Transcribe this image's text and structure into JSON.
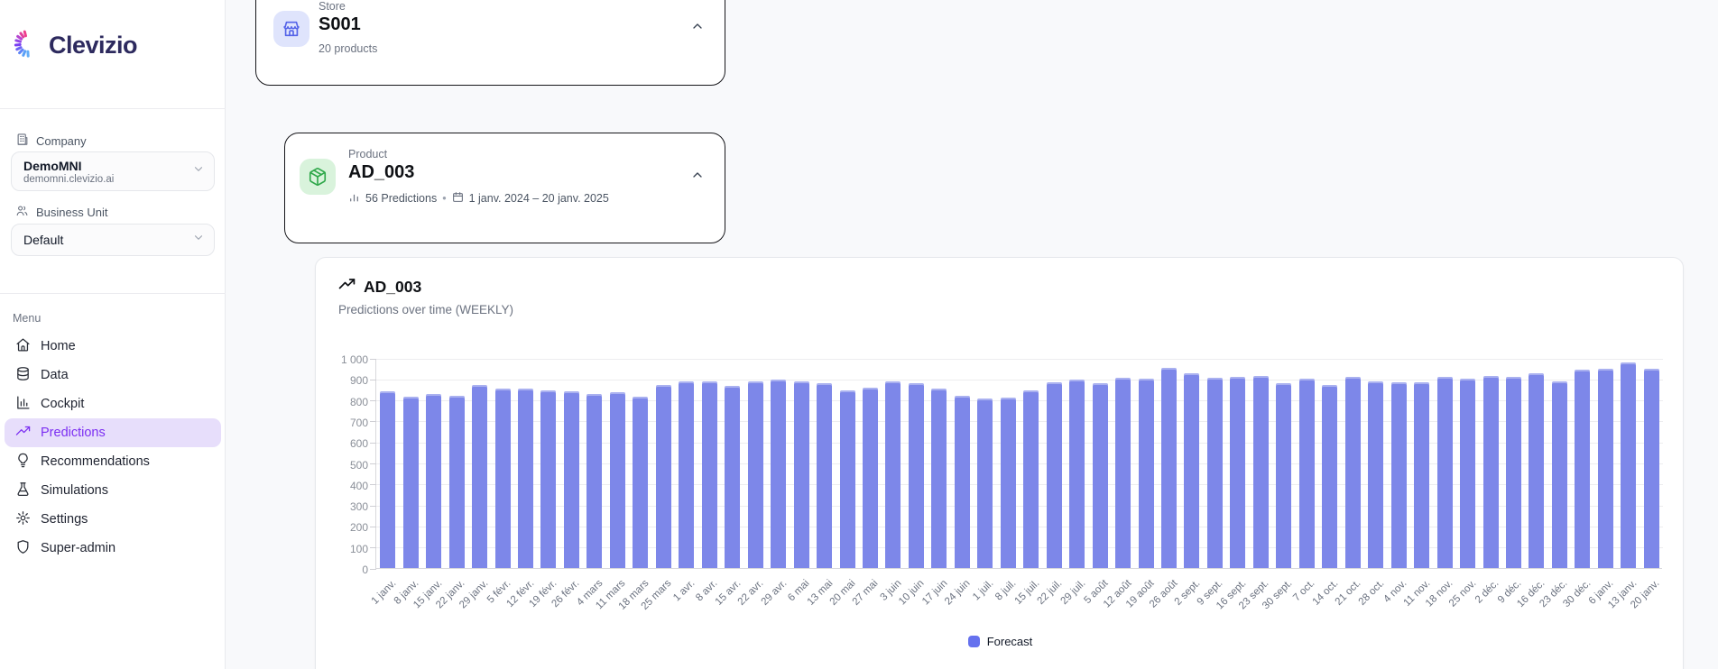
{
  "brand": {
    "name": "Clevizio"
  },
  "sidebar": {
    "company": {
      "label": "Company",
      "name": "DemoMNI",
      "domain": "demomni.clevizio.ai"
    },
    "business_unit": {
      "label": "Business Unit",
      "value": "Default"
    },
    "menu": {
      "label": "Menu",
      "items": [
        {
          "label": "Home",
          "icon": "home-icon",
          "active": false
        },
        {
          "label": "Data",
          "icon": "database-icon",
          "active": false
        },
        {
          "label": "Cockpit",
          "icon": "bar-chart-icon",
          "active": false
        },
        {
          "label": "Predictions",
          "icon": "trending-up-icon",
          "active": true
        },
        {
          "label": "Recommendations",
          "icon": "lightbulb-icon",
          "active": false
        },
        {
          "label": "Simulations",
          "icon": "flask-icon",
          "active": false
        },
        {
          "label": "Settings",
          "icon": "gear-icon",
          "active": false
        },
        {
          "label": "Super-admin",
          "icon": "shield-icon",
          "active": false
        }
      ]
    }
  },
  "selectors": {
    "store": {
      "label": "Store",
      "value": "S001",
      "meta": "20 products"
    },
    "product": {
      "label": "Product",
      "value": "AD_003",
      "predictions": "56 Predictions",
      "separator": "•",
      "date_range": "1 janv. 2024 – 20 janv. 2025"
    }
  },
  "chart": {
    "title": "AD_003",
    "subtitle": "Predictions over time (WEEKLY)",
    "legend": {
      "label": "Forecast",
      "color": "#6571ee"
    }
  },
  "chart_data": {
    "type": "bar",
    "title": "AD_003",
    "subtitle": "Predictions over time (WEEKLY)",
    "categories": [
      "1 janv.",
      "8 janv.",
      "15 janv.",
      "22 janv.",
      "29 janv.",
      "5 févr.",
      "12 févr.",
      "19 févr.",
      "26 févr.",
      "4 mars",
      "11 mars",
      "18 mars",
      "25 mars",
      "1 avr.",
      "8 avr.",
      "15 avr.",
      "22 avr.",
      "29 avr.",
      "6 mai",
      "13 mai",
      "20 mai",
      "27 mai",
      "3 juin",
      "10 juin",
      "17 juin",
      "24 juin",
      "1 juil.",
      "8 juil.",
      "15 juil.",
      "22 juil.",
      "29 juil.",
      "5 août",
      "12 août",
      "19 août",
      "26 août",
      "2 sept.",
      "9 sept.",
      "16 sept.",
      "23 sept.",
      "30 sept.",
      "7 oct.",
      "14 oct.",
      "21 oct.",
      "28 oct.",
      "4 nov.",
      "11 nov.",
      "18 nov.",
      "25 nov.",
      "2 déc.",
      "9 déc.",
      "16 déc.",
      "23 déc.",
      "30 déc.",
      "6 janv.",
      "13 janv.",
      "20 janv."
    ],
    "series": [
      {
        "name": "Forecast",
        "color": "#7d87e9",
        "values": [
          840,
          815,
          830,
          820,
          870,
          855,
          855,
          845,
          840,
          830,
          835,
          815,
          870,
          890,
          890,
          865,
          890,
          895,
          890,
          880,
          845,
          860,
          890,
          880,
          855,
          820,
          805,
          810,
          845,
          885,
          895,
          880,
          905,
          900,
          955,
          925,
          905,
          910,
          915,
          880,
          900,
          870,
          910,
          890,
          885,
          885,
          910,
          900,
          915,
          910,
          925,
          890,
          945,
          950,
          980,
          950
        ]
      }
    ],
    "xlabel": "",
    "ylabel": "",
    "ylim": [
      0,
      1000
    ],
    "yticks": [
      0,
      100,
      200,
      300,
      400,
      500,
      600,
      700,
      800,
      900,
      1000
    ],
    "ytick_labels": [
      "0",
      "100",
      "200",
      "300",
      "400",
      "500",
      "600",
      "700",
      "800",
      "900",
      "1 000"
    ],
    "grid": true,
    "legend_position": "bottom"
  }
}
